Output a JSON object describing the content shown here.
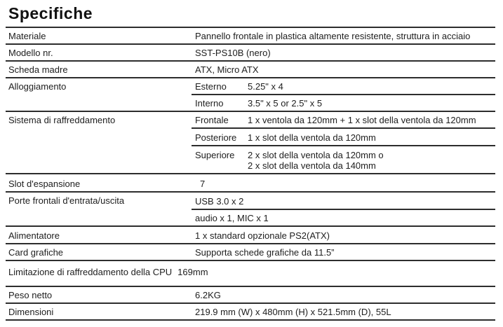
{
  "title": "Specifiche",
  "table": {
    "rows": [
      {
        "label": "Materiale",
        "value": "Pannello frontale in plastica altamente resistente, struttura in acciaio"
      },
      {
        "label": "Modello nr.",
        "value": "SST-PS10B (nero)"
      },
      {
        "label": "Scheda madre",
        "value": "ATX, Micro ATX"
      },
      {
        "label": "Alloggiamento",
        "subrows": [
          {
            "sublabel": "Esterno",
            "value": "5.25\" x 4"
          },
          {
            "sublabel": "Interno",
            "value": "3.5\" x 5 or 2.5\" x 5"
          }
        ]
      },
      {
        "label": "Sistema di raffreddamento",
        "subrows": [
          {
            "sublabel": "Frontale",
            "value": "1 x ventola da 120mm + 1 x slot della ventola da 120mm"
          },
          {
            "sublabel": "Posteriore",
            "value": "1 x slot della ventola da 120mm"
          },
          {
            "sublabel": "Superiore",
            "value": "2 x slot della ventola da 120mm o\n2 x slot della ventola da 140mm"
          }
        ]
      },
      {
        "label": "Slot d'espansione",
        "value": "7"
      },
      {
        "label": "Porte frontali d'entrata/uscita",
        "subrows": [
          {
            "sublabel": "",
            "value": "USB 3.0 x 2"
          },
          {
            "sublabel": "",
            "value": "audio x 1, MIC x 1"
          }
        ]
      },
      {
        "label": "Alimentatore",
        "value": "1 x standard opzionale PS2(ATX)"
      },
      {
        "label": "Card grafiche",
        "value": "Supporta schede grafiche da 11.5”"
      },
      {
        "label": "Limitazione di raffreddamento della CPU",
        "value": "169mm"
      },
      {
        "label": "Peso netto",
        "value": "6.2KG"
      },
      {
        "label": "Dimensioni",
        "value": "219.9 mm (W) x 480mm (H) x 521.5mm (D), 55L"
      }
    ]
  }
}
